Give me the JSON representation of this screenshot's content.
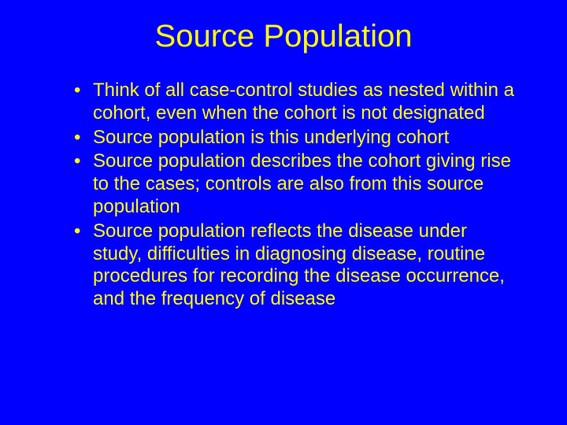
{
  "slide": {
    "background_color": "#0000ff",
    "text_color": "#ffff00",
    "title": "Source Population",
    "title_fontsize": 40,
    "body_fontsize": 24,
    "bullets": [
      "Think of all case-control studies as nested within a cohort, even when the cohort is not designated",
      "Source population is this underlying cohort",
      "Source population describes the cohort giving rise to the cases; controls are also from this source population",
      "Source population reflects the disease under study, difficulties in diagnosing disease, routine procedures for recording the disease occurrence, and the frequency of disease"
    ]
  }
}
